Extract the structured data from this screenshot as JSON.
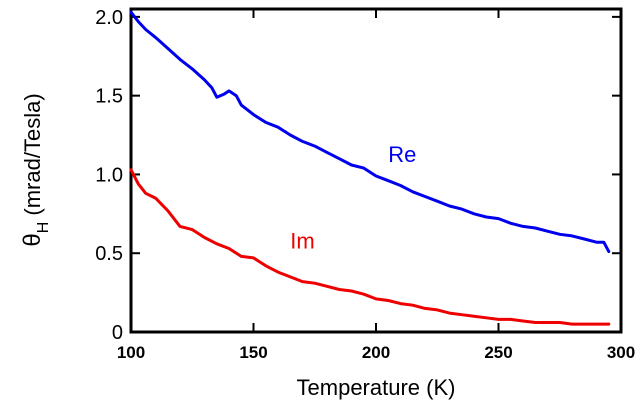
{
  "chart_data": {
    "type": "line",
    "title": "",
    "xlabel": "Temperature (K)",
    "ylabel": {
      "symbol": "θ",
      "subscript": "H",
      "unit": " (mrad/Tesla)"
    },
    "xlim": [
      100,
      300
    ],
    "ylim": [
      0,
      2.05
    ],
    "x_ticks": [
      {
        "value": 100,
        "label": "100"
      },
      {
        "value": 150,
        "label": "150"
      },
      {
        "value": 200,
        "label": "200"
      },
      {
        "value": 250,
        "label": "250"
      },
      {
        "value": 300,
        "label": "300"
      }
    ],
    "y_ticks": [
      {
        "value": 0,
        "label": "0"
      },
      {
        "value": 0.5,
        "label": "0.5"
      },
      {
        "value": 1.0,
        "label": "1.0"
      },
      {
        "value": 1.5,
        "label": "1.5"
      },
      {
        "value": 2.0,
        "label": "2.0"
      }
    ],
    "grid": false,
    "series": [
      {
        "name": "Re",
        "color": "#0000ee",
        "label_at": [
          205,
          1.08
        ],
        "x": [
          100,
          103,
          106,
          110,
          115,
          120,
          125,
          130,
          133,
          135,
          138,
          140,
          143,
          145,
          150,
          155,
          160,
          165,
          170,
          175,
          180,
          185,
          190,
          195,
          200,
          205,
          210,
          215,
          220,
          225,
          230,
          235,
          240,
          245,
          250,
          255,
          260,
          265,
          270,
          275,
          280,
          285,
          290,
          293,
          295
        ],
        "y": [
          2.03,
          1.97,
          1.92,
          1.87,
          1.8,
          1.73,
          1.67,
          1.6,
          1.55,
          1.49,
          1.51,
          1.53,
          1.5,
          1.44,
          1.38,
          1.33,
          1.3,
          1.25,
          1.21,
          1.18,
          1.14,
          1.1,
          1.06,
          1.04,
          0.99,
          0.96,
          0.93,
          0.89,
          0.86,
          0.83,
          0.8,
          0.78,
          0.75,
          0.73,
          0.72,
          0.69,
          0.67,
          0.66,
          0.64,
          0.62,
          0.61,
          0.59,
          0.57,
          0.57,
          0.51
        ]
      },
      {
        "name": "Im",
        "color": "#ee0000",
        "label_at": [
          165,
          0.53
        ],
        "x": [
          100,
          103,
          106,
          110,
          115,
          120,
          125,
          130,
          135,
          140,
          145,
          150,
          155,
          160,
          165,
          170,
          175,
          180,
          185,
          190,
          195,
          200,
          205,
          210,
          215,
          220,
          225,
          230,
          235,
          240,
          245,
          250,
          255,
          260,
          265,
          270,
          275,
          280,
          285,
          290,
          295
        ],
        "y": [
          1.03,
          0.94,
          0.88,
          0.85,
          0.77,
          0.67,
          0.65,
          0.6,
          0.56,
          0.53,
          0.48,
          0.47,
          0.42,
          0.38,
          0.35,
          0.32,
          0.31,
          0.29,
          0.27,
          0.26,
          0.24,
          0.21,
          0.2,
          0.18,
          0.17,
          0.15,
          0.14,
          0.12,
          0.11,
          0.1,
          0.09,
          0.08,
          0.08,
          0.07,
          0.06,
          0.06,
          0.06,
          0.05,
          0.05,
          0.05,
          0.05
        ]
      }
    ]
  }
}
